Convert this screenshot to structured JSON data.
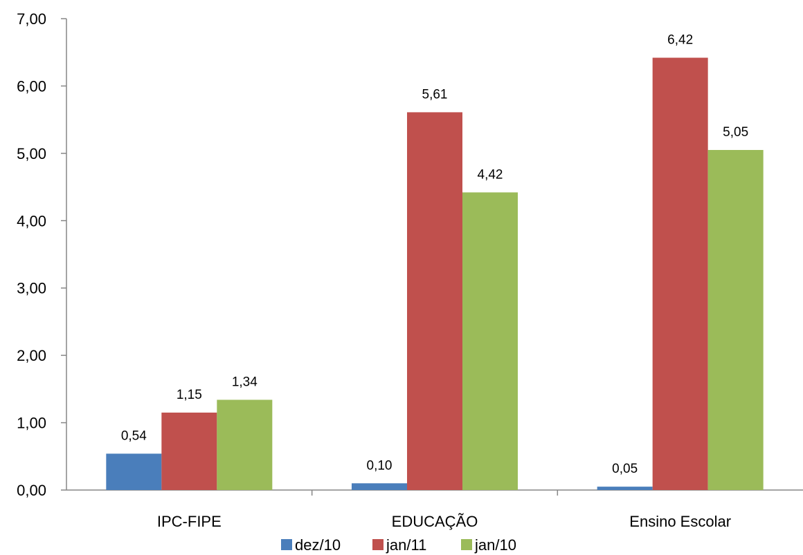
{
  "chart_data": {
    "type": "bar",
    "title": "",
    "xlabel": "",
    "ylabel": "",
    "categories": [
      "IPC-FIPE",
      "EDUCAÇÃO",
      "Ensino Escolar"
    ],
    "series": [
      {
        "name": "dez/10",
        "color": "#4a7ebb",
        "values": [
          0.54,
          0.1,
          0.05
        ],
        "labels": [
          "0,54",
          "0,10",
          "0,05"
        ]
      },
      {
        "name": "jan/11",
        "color": "#c0504d",
        "values": [
          1.15,
          5.61,
          6.42
        ],
        "labels": [
          "1,15",
          "5,61",
          "6,42"
        ]
      },
      {
        "name": "jan/10",
        "color": "#9bbb59",
        "values": [
          1.34,
          4.42,
          5.05
        ],
        "labels": [
          "1,34",
          "4,42",
          "5,05"
        ]
      }
    ],
    "ylim": [
      0,
      7
    ],
    "yticks": [
      0,
      1,
      2,
      3,
      4,
      5,
      6,
      7
    ],
    "ytick_labels": [
      "0,00",
      "1,00",
      "2,00",
      "3,00",
      "4,00",
      "5,00",
      "6,00",
      "7,00"
    ],
    "grid": false,
    "legend_position": "bottom"
  }
}
